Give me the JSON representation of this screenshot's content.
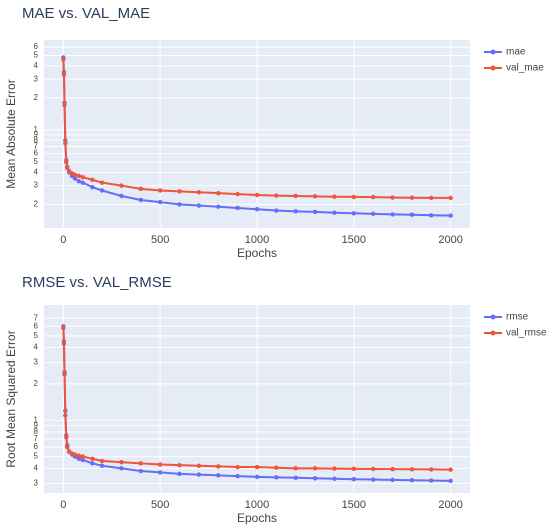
{
  "chart_data": [
    {
      "type": "line",
      "title": "MAE vs. VAL_MAE",
      "x_label": "Epochs",
      "y_label": "Mean Absolute Error",
      "x": [
        0,
        3,
        6,
        10,
        15,
        20,
        30,
        45,
        60,
        80,
        100,
        150,
        200,
        300,
        400,
        500,
        600,
        700,
        800,
        900,
        1000,
        1100,
        1200,
        1300,
        1400,
        1500,
        1600,
        1700,
        1800,
        1900,
        2000
      ],
      "series": [
        {
          "name": "mae",
          "color": "#636efa",
          "values": [
            4.8,
            3.5,
            1.8,
            0.8,
            0.52,
            0.45,
            0.4,
            0.37,
            0.35,
            0.33,
            0.32,
            0.29,
            0.27,
            0.24,
            0.22,
            0.21,
            0.2,
            0.195,
            0.19,
            0.185,
            0.18,
            0.175,
            0.172,
            0.17,
            0.167,
            0.165,
            0.163,
            0.161,
            0.16,
            0.158,
            0.157
          ]
        },
        {
          "name": "val_mae",
          "color": "#ef553b",
          "values": [
            4.6,
            3.3,
            1.7,
            0.75,
            0.5,
            0.44,
            0.41,
            0.39,
            0.38,
            0.37,
            0.36,
            0.34,
            0.32,
            0.3,
            0.28,
            0.27,
            0.265,
            0.26,
            0.255,
            0.25,
            0.245,
            0.242,
            0.24,
            0.238,
            0.236,
            0.235,
            0.234,
            0.232,
            0.231,
            0.23,
            0.23
          ]
        }
      ],
      "xlim": [
        -100,
        2100
      ],
      "xticks": [
        0,
        500,
        1000,
        1500,
        2000
      ],
      "ylim": [
        0.12,
        7
      ],
      "log_y": true,
      "yticks": [
        {
          "value": 0.2,
          "label": "2"
        },
        {
          "value": 0.3,
          "label": "3"
        },
        {
          "value": 0.4,
          "label": "4"
        },
        {
          "value": 0.5,
          "label": "5"
        },
        {
          "value": 0.6,
          "label": "6"
        },
        {
          "value": 0.7,
          "label": "7"
        },
        {
          "value": 0.8,
          "label": "8"
        },
        {
          "value": 0.9,
          "label": "9"
        },
        1,
        2,
        3,
        4,
        5,
        6
      ],
      "grid": true,
      "legend": "right"
    },
    {
      "type": "line",
      "title": "RMSE vs. VAL_RMSE",
      "x_label": "Epochs",
      "y_label": "Root Mean Squared Error",
      "x": [
        0,
        3,
        6,
        10,
        15,
        20,
        30,
        45,
        60,
        80,
        100,
        150,
        200,
        300,
        400,
        500,
        600,
        700,
        800,
        900,
        1000,
        1100,
        1200,
        1300,
        1400,
        1500,
        1600,
        1700,
        1800,
        1900,
        2000
      ],
      "series": [
        {
          "name": "rmse",
          "color": "#636efa",
          "values": [
            6,
            4.5,
            2.5,
            1.2,
            0.75,
            0.62,
            0.55,
            0.52,
            0.5,
            0.48,
            0.47,
            0.44,
            0.42,
            0.4,
            0.38,
            0.37,
            0.36,
            0.355,
            0.35,
            0.345,
            0.34,
            0.337,
            0.334,
            0.331,
            0.328,
            0.325,
            0.323,
            0.321,
            0.319,
            0.317,
            0.315
          ]
        },
        {
          "name": "val_rmse",
          "color": "#ef553b",
          "values": [
            5.8,
            4.3,
            2.4,
            1.1,
            0.72,
            0.6,
            0.55,
            0.53,
            0.52,
            0.51,
            0.5,
            0.48,
            0.46,
            0.45,
            0.44,
            0.43,
            0.425,
            0.42,
            0.415,
            0.41,
            0.41,
            0.405,
            0.4,
            0.4,
            0.398,
            0.396,
            0.395,
            0.394,
            0.393,
            0.392,
            0.39
          ]
        }
      ],
      "xlim": [
        -100,
        2100
      ],
      "xticks": [
        0,
        500,
        1000,
        1500,
        2000
      ],
      "ylim": [
        0.25,
        9
      ],
      "log_y": true,
      "yticks": [
        {
          "value": 0.3,
          "label": "3"
        },
        {
          "value": 0.4,
          "label": "4"
        },
        {
          "value": 0.5,
          "label": "5"
        },
        {
          "value": 0.6,
          "label": "6"
        },
        {
          "value": 0.7,
          "label": "7"
        },
        {
          "value": 0.8,
          "label": "8"
        },
        {
          "value": 0.9,
          "label": "9"
        },
        1,
        2,
        3,
        4,
        5,
        6,
        7
      ],
      "grid": true,
      "legend": "right"
    }
  ]
}
